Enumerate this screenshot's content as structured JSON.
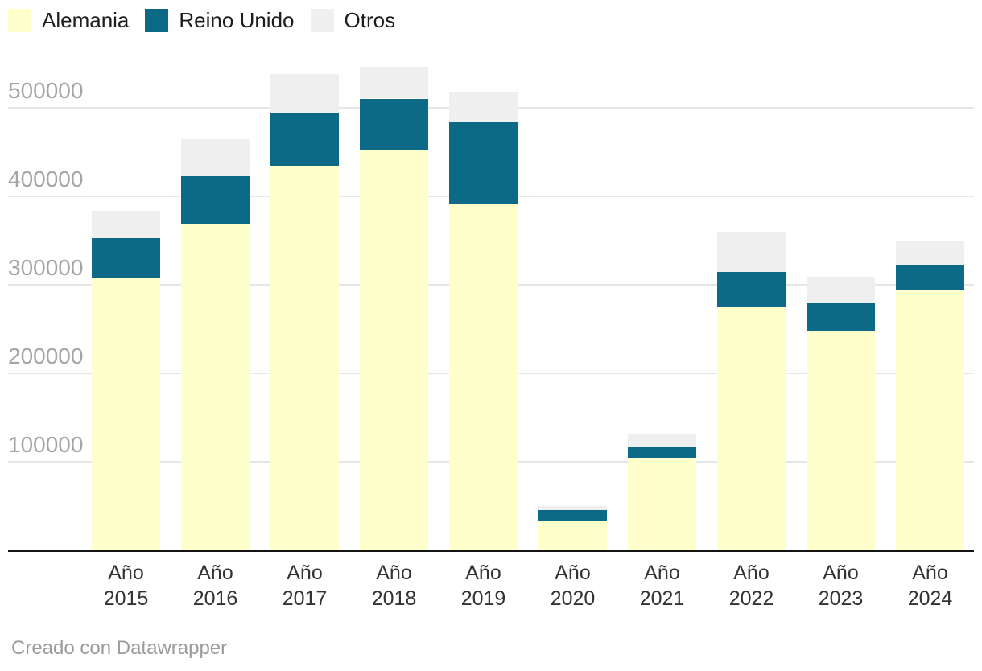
{
  "legend": {
    "items": [
      {
        "label": "Alemania",
        "color": "#ffffcc"
      },
      {
        "label": "Reino Unido",
        "color": "#0c6a87"
      },
      {
        "label": "Otros",
        "color": "#efefef"
      }
    ]
  },
  "footer": {
    "credit": "Creado con Datawrapper"
  },
  "chart_data": {
    "type": "bar",
    "stacked": true,
    "orientation": "vertical",
    "x_label_prefix": "Año",
    "categories": [
      "2015",
      "2016",
      "2017",
      "2018",
      "2019",
      "2020",
      "2021",
      "2022",
      "2023",
      "2024"
    ],
    "series": [
      {
        "name": "Alemania",
        "color": "#ffffcc",
        "values": [
          308000,
          368000,
          434000,
          452000,
          391000,
          33000,
          105000,
          275000,
          247000,
          294000
        ]
      },
      {
        "name": "Reino Unido",
        "color": "#0c6a87",
        "values": [
          45000,
          54000,
          60000,
          58000,
          92000,
          13000,
          11500,
          39000,
          33000,
          29000
        ]
      },
      {
        "name": "Otros",
        "color": "#efefef",
        "values": [
          30000,
          42000,
          44000,
          36000,
          35000,
          4500,
          15500,
          46000,
          29000,
          26000
        ]
      }
    ],
    "totals_approx": [
      383000,
      464000,
      538000,
      546000,
      518000,
      50500,
      132000,
      360000,
      309000,
      349000
    ],
    "title": "",
    "xlabel": "",
    "ylabel": "",
    "ylim": [
      0,
      555000
    ],
    "yticks": [
      100000,
      200000,
      300000,
      400000,
      500000
    ],
    "ytick_labels": [
      "100000",
      "200000",
      "300000",
      "400000",
      "500000"
    ],
    "grid": true,
    "legend_position": "top-left",
    "colors": {
      "gridline": "#e6e6e6",
      "baseline": "#141414",
      "y_tick_text": "#a5a5a5",
      "x_tick_text": "#333333",
      "legend_text": "#1d1d1d",
      "credit_text": "#9b9b9b",
      "background": "#ffffff"
    }
  }
}
